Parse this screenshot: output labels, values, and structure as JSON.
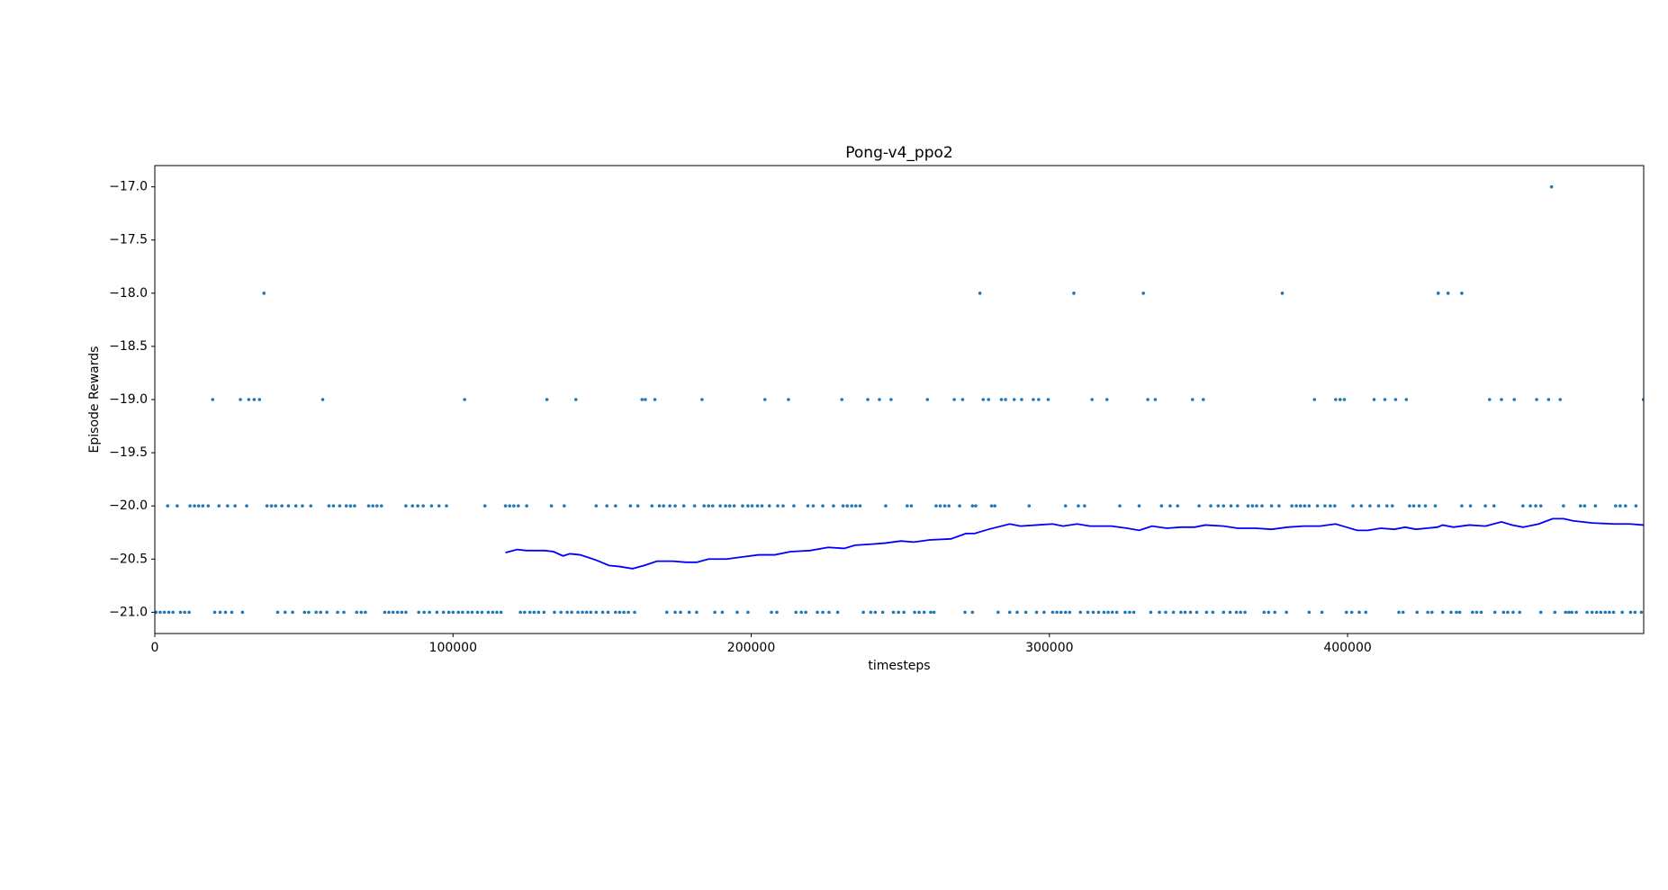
{
  "chart_data": {
    "type": "scatter",
    "title": "Pong-v4_ppo2",
    "xlabel": "timesteps",
    "ylabel": "Episode Rewards",
    "xlim": [
      0,
      499300
    ],
    "ylim": [
      -21.2,
      -16.8
    ],
    "xticks": [
      0,
      100000,
      200000,
      300000,
      400000
    ],
    "yticks": [
      {
        "value": -17.0,
        "label": "−17.0"
      },
      {
        "value": -17.5,
        "label": "−17.5"
      },
      {
        "value": -18.0,
        "label": "−18.0"
      },
      {
        "value": -18.5,
        "label": "−18.5"
      },
      {
        "value": -19.0,
        "label": "−19.0"
      },
      {
        "value": -19.5,
        "label": "−19.5"
      },
      {
        "value": -20.0,
        "label": "−20.0"
      },
      {
        "value": -20.5,
        "label": "−20.5"
      },
      {
        "value": -21.0,
        "label": "−21.0"
      }
    ],
    "scatter": {
      "color": "#1f77b4",
      "groups": [
        {
          "y": -17,
          "x": [
            468400
          ]
        },
        {
          "y": -18,
          "x": [
            36600,
            276700,
            308200,
            331500,
            378100,
            430400,
            433700,
            438300
          ]
        },
        {
          "y": -19,
          "x": [
            19400,
            28700,
            31500,
            33300,
            35100,
            56300,
            103900,
            131500,
            141200,
            163400,
            164500,
            167700,
            183500,
            204600,
            212500,
            230400,
            239100,
            243000,
            246900,
            259100,
            268100,
            270900,
            277800,
            279600,
            283900,
            285300,
            288200,
            290700,
            294600,
            296400,
            299600,
            314300,
            319300,
            333000,
            335500,
            348000,
            351600,
            388900,
            396000,
            397500,
            398900,
            408900,
            412500,
            416100,
            419700,
            447600,
            451600,
            455900,
            463400,
            467400,
            471300,
            499200
          ]
        },
        {
          "y": -20,
          "x": [
            4300,
            7500,
            11800,
            13300,
            14700,
            16100,
            17900,
            21500,
            24400,
            26900,
            30800,
            37600,
            39100,
            40500,
            42600,
            44800,
            47300,
            49500,
            52300,
            58400,
            59900,
            62000,
            64200,
            65600,
            67000,
            71700,
            73100,
            74500,
            76000,
            84200,
            86400,
            88200,
            90000,
            92800,
            95300,
            97800,
            110700,
            117600,
            119000,
            120400,
            121900,
            124700,
            133000,
            137300,
            148000,
            151600,
            154500,
            159500,
            162000,
            166700,
            169200,
            170600,
            172700,
            174500,
            177400,
            181000,
            184200,
            185700,
            187100,
            189600,
            191400,
            192800,
            194300,
            197100,
            198900,
            200300,
            202100,
            203600,
            206100,
            208900,
            210700,
            214300,
            219000,
            220800,
            224000,
            227600,
            230800,
            232200,
            233700,
            235100,
            236500,
            245100,
            252300,
            253700,
            262000,
            263400,
            264900,
            266300,
            269900,
            274200,
            275300,
            280600,
            281700,
            293200,
            305400,
            309700,
            311800,
            323600,
            330100,
            337600,
            340500,
            343000,
            350200,
            354100,
            356600,
            358400,
            360900,
            363100,
            366600,
            368100,
            369500,
            371300,
            374500,
            377000,
            381300,
            382800,
            384200,
            385600,
            387100,
            389900,
            392400,
            394200,
            395700,
            401800,
            404600,
            407500,
            410400,
            413200,
            415000,
            420800,
            422200,
            424000,
            426100,
            429400,
            438300,
            441200,
            446200,
            449100,
            458800,
            461300,
            463100,
            464800,
            472400,
            478100,
            479500,
            483100,
            489900,
            491400,
            493200,
            496700
          ]
        },
        {
          "y": -21,
          "x": [
            400,
            1800,
            3200,
            4700,
            6100,
            8600,
            10000,
            11500,
            20100,
            21900,
            23700,
            25800,
            29400,
            41200,
            43700,
            46200,
            50200,
            51600,
            54100,
            55600,
            57700,
            61300,
            63400,
            67700,
            69200,
            70600,
            77100,
            78500,
            79900,
            81400,
            82800,
            84200,
            88500,
            90300,
            92100,
            94600,
            96800,
            98600,
            100000,
            101800,
            103200,
            105000,
            106400,
            108200,
            109700,
            111800,
            113300,
            114700,
            116100,
            122600,
            124000,
            125800,
            127200,
            128700,
            130500,
            134000,
            136200,
            138300,
            139800,
            141900,
            143400,
            144800,
            146200,
            148000,
            150200,
            152000,
            154500,
            155900,
            157300,
            158800,
            160900,
            171700,
            174500,
            176300,
            179200,
            181700,
            187800,
            190300,
            195300,
            198900,
            206800,
            208600,
            215000,
            216800,
            218300,
            222200,
            224000,
            226100,
            229000,
            237600,
            240100,
            241600,
            244100,
            247700,
            249400,
            251200,
            254800,
            256300,
            258000,
            260200,
            261300,
            271700,
            274200,
            282800,
            286700,
            289200,
            292100,
            295700,
            298200,
            301100,
            302500,
            303900,
            305400,
            306800,
            310400,
            312900,
            314700,
            316500,
            318300,
            319700,
            321100,
            322600,
            325400,
            326900,
            328300,
            334000,
            336900,
            339000,
            341600,
            344100,
            345500,
            347300,
            349400,
            352700,
            354800,
            358400,
            360600,
            362700,
            364100,
            365600,
            372000,
            373500,
            375600,
            379500,
            387100,
            391400,
            399600,
            401400,
            403900,
            406100,
            417200,
            418600,
            423300,
            426900,
            428300,
            431900,
            434700,
            436500,
            437600,
            441900,
            443300,
            444800,
            449400,
            452300,
            453700,
            455500,
            457700,
            464800,
            469500,
            473100,
            474200,
            475200,
            476700,
            480300,
            482000,
            483500,
            484900,
            486400,
            487800,
            489200,
            492100,
            494900,
            496400,
            498500
          ]
        }
      ]
    },
    "line": {
      "color": "#0000ff",
      "x": [
        117600,
        121500,
        124700,
        130800,
        133700,
        136900,
        139100,
        142600,
        144800,
        148000,
        152300,
        155900,
        160200,
        164100,
        168400,
        173800,
        178100,
        181700,
        185700,
        191700,
        197100,
        202500,
        207900,
        213200,
        219700,
        225800,
        231200,
        234800,
        240100,
        244800,
        250200,
        254500,
        259800,
        267000,
        272000,
        274900,
        279600,
        286700,
        290300,
        295700,
        301100,
        304600,
        309300,
        313600,
        320800,
        326100,
        330100,
        334400,
        339400,
        344100,
        348700,
        352300,
        358400,
        363100,
        369200,
        374500,
        379900,
        385300,
        390700,
        396000,
        399600,
        403200,
        406800,
        411100,
        415700,
        419300,
        422900,
        426500,
        430100,
        431900,
        435500,
        440800,
        446200,
        451600,
        455200,
        458800,
        464100,
        468800,
        472400,
        475600,
        482000,
        489200,
        494600,
        499200
      ],
      "y": [
        -20.44,
        -20.41,
        -20.42,
        -20.42,
        -20.43,
        -20.47,
        -20.45,
        -20.46,
        -20.48,
        -20.51,
        -20.56,
        -20.57,
        -20.59,
        -20.56,
        -20.52,
        -20.52,
        -20.53,
        -20.53,
        -20.5,
        -20.5,
        -20.48,
        -20.46,
        -20.46,
        -20.43,
        -20.42,
        -20.39,
        -20.4,
        -20.37,
        -20.36,
        -20.35,
        -20.33,
        -20.34,
        -20.32,
        -20.31,
        -20.26,
        -20.26,
        -20.22,
        -20.17,
        -20.19,
        -20.18,
        -20.17,
        -20.19,
        -20.17,
        -20.19,
        -20.19,
        -20.21,
        -20.23,
        -20.19,
        -20.21,
        -20.2,
        -20.2,
        -20.18,
        -20.19,
        -20.21,
        -20.21,
        -20.22,
        -20.2,
        -20.19,
        -20.19,
        -20.17,
        -20.2,
        -20.23,
        -20.23,
        -20.21,
        -20.22,
        -20.2,
        -20.22,
        -20.21,
        -20.2,
        -20.18,
        -20.2,
        -20.18,
        -20.19,
        -20.15,
        -20.18,
        -20.2,
        -20.17,
        -20.12,
        -20.12,
        -20.14,
        -20.16,
        -20.17,
        -20.17,
        -20.18
      ]
    }
  }
}
